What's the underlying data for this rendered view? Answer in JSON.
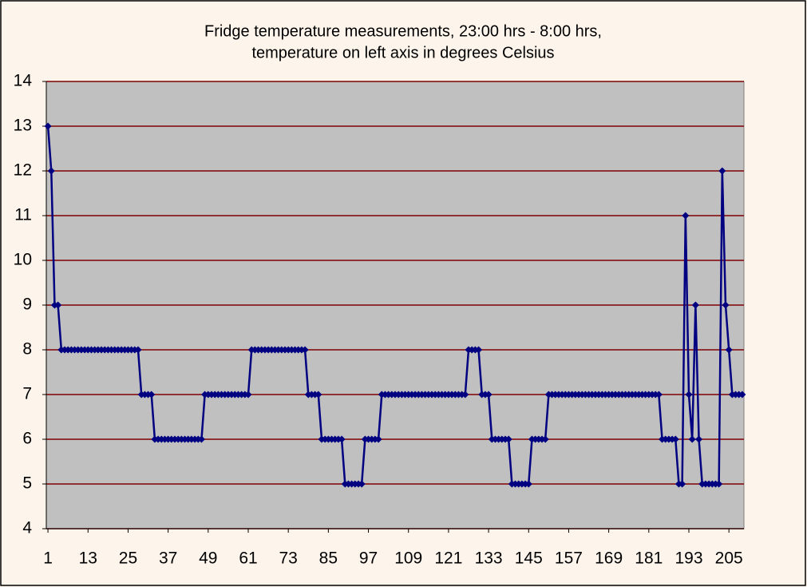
{
  "chart_data": {
    "type": "line",
    "title": [
      "Fridge temperature measurements, 23:00 hrs - 8:00 hrs,",
      "temperature on left axis in degrees Celsius"
    ],
    "x": [
      1,
      2,
      3,
      4,
      5,
      6,
      7,
      8,
      9,
      10,
      11,
      12,
      13,
      14,
      15,
      16,
      17,
      18,
      19,
      20,
      21,
      22,
      23,
      24,
      25,
      26,
      27,
      28,
      29,
      30,
      31,
      32,
      33,
      34,
      35,
      36,
      37,
      38,
      39,
      40,
      41,
      42,
      43,
      44,
      45,
      46,
      47,
      48,
      49,
      50,
      51,
      52,
      53,
      54,
      55,
      56,
      57,
      58,
      59,
      60,
      61,
      62,
      63,
      64,
      65,
      66,
      67,
      68,
      69,
      70,
      71,
      72,
      73,
      74,
      75,
      76,
      77,
      78,
      79,
      80,
      81,
      82,
      83,
      84,
      85,
      86,
      87,
      88,
      89,
      90,
      91,
      92,
      93,
      94,
      95,
      96,
      97,
      98,
      99,
      100,
      101,
      102,
      103,
      104,
      105,
      106,
      107,
      108,
      109,
      110,
      111,
      112,
      113,
      114,
      115,
      116,
      117,
      118,
      119,
      120,
      121,
      122,
      123,
      124,
      125,
      126,
      127,
      128,
      129,
      130,
      131,
      132,
      133,
      134,
      135,
      136,
      137,
      138,
      139,
      140,
      141,
      142,
      143,
      144,
      145,
      146,
      147,
      148,
      149,
      150,
      151,
      152,
      153,
      154,
      155,
      156,
      157,
      158,
      159,
      160,
      161,
      162,
      163,
      164,
      165,
      166,
      167,
      168,
      169,
      170,
      171,
      172,
      173,
      174,
      175,
      176,
      177,
      178,
      179,
      180,
      181,
      182,
      183,
      184,
      185,
      186,
      187,
      188,
      189,
      190,
      191,
      192,
      193,
      194,
      195,
      196,
      197,
      198,
      199,
      200,
      201,
      202,
      203,
      204,
      205,
      206,
      207,
      208,
      209
    ],
    "series": [
      {
        "color": "#000080",
        "values": [
          13,
          12,
          9,
          9,
          8,
          8,
          8,
          8,
          8,
          8,
          8,
          8,
          8,
          8,
          8,
          8,
          8,
          8,
          8,
          8,
          8,
          8,
          8,
          8,
          8,
          8,
          8,
          8,
          7,
          7,
          7,
          7,
          6,
          6,
          6,
          6,
          6,
          6,
          6,
          6,
          6,
          6,
          6,
          6,
          6,
          6,
          6,
          7,
          7,
          7,
          7,
          7,
          7,
          7,
          7,
          7,
          7,
          7,
          7,
          7,
          7,
          8,
          8,
          8,
          8,
          8,
          8,
          8,
          8,
          8,
          8,
          8,
          8,
          8,
          8,
          8,
          8,
          8,
          7,
          7,
          7,
          7,
          6,
          6,
          6,
          6,
          6,
          6,
          6,
          5,
          5,
          5,
          5,
          5,
          5,
          6,
          6,
          6,
          6,
          6,
          7,
          7,
          7,
          7,
          7,
          7,
          7,
          7,
          7,
          7,
          7,
          7,
          7,
          7,
          7,
          7,
          7,
          7,
          7,
          7,
          7,
          7,
          7,
          7,
          7,
          7,
          8,
          8,
          8,
          8,
          7,
          7,
          7,
          6,
          6,
          6,
          6,
          6,
          6,
          5,
          5,
          5,
          5,
          5,
          5,
          6,
          6,
          6,
          6,
          6,
          7,
          7,
          7,
          7,
          7,
          7,
          7,
          7,
          7,
          7,
          7,
          7,
          7,
          7,
          7,
          7,
          7,
          7,
          7,
          7,
          7,
          7,
          7,
          7,
          7,
          7,
          7,
          7,
          7,
          7,
          7,
          7,
          7,
          7,
          6,
          6,
          6,
          6,
          6,
          5,
          5,
          11,
          7,
          6,
          9,
          6,
          5,
          5,
          5,
          5,
          5,
          5,
          12,
          9,
          8,
          7,
          7,
          7,
          7
        ]
      }
    ],
    "xlim": [
      0.5,
      209.5
    ],
    "xticks": [
      1,
      13,
      25,
      37,
      49,
      61,
      73,
      85,
      97,
      109,
      121,
      133,
      145,
      157,
      169,
      181,
      193,
      205
    ],
    "ylim": [
      4,
      14
    ],
    "yticks": [
      4,
      5,
      6,
      7,
      8,
      9,
      10,
      11,
      12,
      13,
      14
    ],
    "grid": true,
    "grid_color": "#800000",
    "plot_background": "#c0c0c0"
  }
}
